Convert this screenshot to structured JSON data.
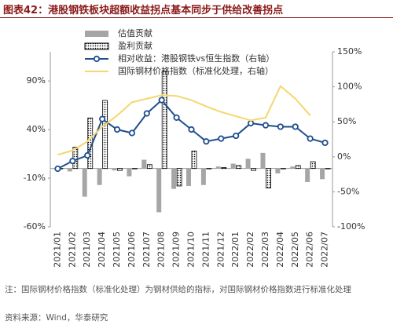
{
  "title": "图表42：港股钢铁板块超额收益拐点基本同步于供给改善拐点",
  "chart_data": {
    "type": "combo",
    "categories": [
      "2021/01",
      "2021/02",
      "2021/03",
      "2021/04",
      "2021/05",
      "2021/06",
      "2021/07",
      "2021/08",
      "2021/09",
      "2021/10",
      "2021/11",
      "2021/12",
      "2022/01",
      "2022/02",
      "2022/03",
      "2022/04",
      "2022/05",
      "2022/06",
      "2022/07"
    ],
    "series": [
      {
        "name": "估值贡献",
        "type": "bar",
        "color": "#a6a6a6",
        "values": [
          0,
          -3,
          -29,
          -17,
          -2,
          -8,
          9,
          -45,
          -21,
          -18,
          -17,
          2,
          5,
          10,
          16,
          -5,
          2,
          -14,
          -11
        ]
      },
      {
        "name": "盈利贡献",
        "type": "bar",
        "pattern": "dots",
        "color": "#000000",
        "values": [
          0,
          22,
          52,
          70,
          -2,
          0,
          4,
          100,
          -18,
          18,
          0,
          1,
          3,
          -2,
          -20,
          0,
          3,
          7,
          0
        ]
      },
      {
        "name": "相对收益：港股钢铁vs恒生指数（右轴）",
        "type": "line",
        "markers": true,
        "axis": "y2",
        "color": "#1f4e8c",
        "values": [
          -17,
          -6,
          2,
          54,
          39,
          34,
          62,
          81,
          56,
          39,
          22,
          26,
          30,
          48,
          45,
          43,
          43,
          26,
          20
        ]
      },
      {
        "name": "国际钢材价格指数（标准化处理，右轴）",
        "type": "line",
        "markers": false,
        "axis": "y2",
        "color": "#f5d76e",
        "values": [
          3,
          9,
          22,
          43,
          59,
          78,
          83,
          88,
          87,
          81,
          72,
          64,
          58,
          52,
          56,
          101,
          83,
          59,
          null
        ]
      }
    ],
    "ylim": [
      -60,
      120
    ],
    "yticks": [
      {
        "value": -60,
        "label": "-60%"
      },
      {
        "value": -10,
        "label": "-10%"
      },
      {
        "value": 40,
        "label": "40%"
      },
      {
        "value": 90,
        "label": "90%"
      }
    ],
    "y2lim": [
      -100,
      150
    ],
    "y2ticks": [
      {
        "value": -100,
        "label": "-100%"
      },
      {
        "value": -50,
        "label": "-50%"
      },
      {
        "value": 0,
        "label": "0%"
      },
      {
        "value": 50,
        "label": "50%"
      },
      {
        "value": 100,
        "label": "100%"
      },
      {
        "value": 150,
        "label": "150%"
      }
    ],
    "legend": "top"
  },
  "notes": [
    "注：国际钢材价格指数（标准化处理）为钢材供给的指标，对国际钢材价格指数进行标准化处理",
    "资料来源：Wind，华泰研究"
  ]
}
